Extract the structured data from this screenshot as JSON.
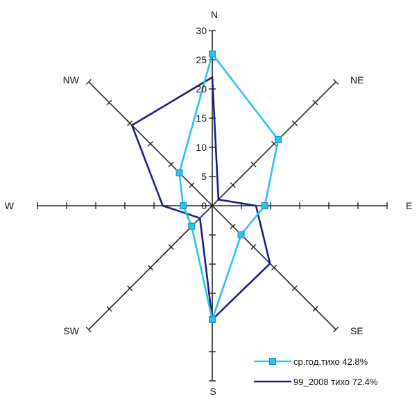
{
  "chart_data": {
    "type": "radar",
    "directions": [
      "N",
      "NE",
      "E",
      "SE",
      "S",
      "SW",
      "W",
      "NW"
    ],
    "r_ticks": [
      "0",
      "5",
      "10",
      "15",
      "20",
      "25",
      "30"
    ],
    "r_max": 30,
    "series": [
      {
        "name": "ср.год.тихо 42.8%",
        "color": "#29c3ec",
        "marker": "square",
        "values": [
          26,
          16,
          9,
          7,
          19.5,
          5,
          5,
          8
        ]
      },
      {
        "name": "99_2008 тихо 72.4%",
        "color": "#1b1f80",
        "marker": "none",
        "values": [
          22,
          1.5,
          7.5,
          14,
          19.5,
          3,
          8.5,
          19.5
        ]
      }
    ],
    "legend_position": "bottom-right"
  }
}
